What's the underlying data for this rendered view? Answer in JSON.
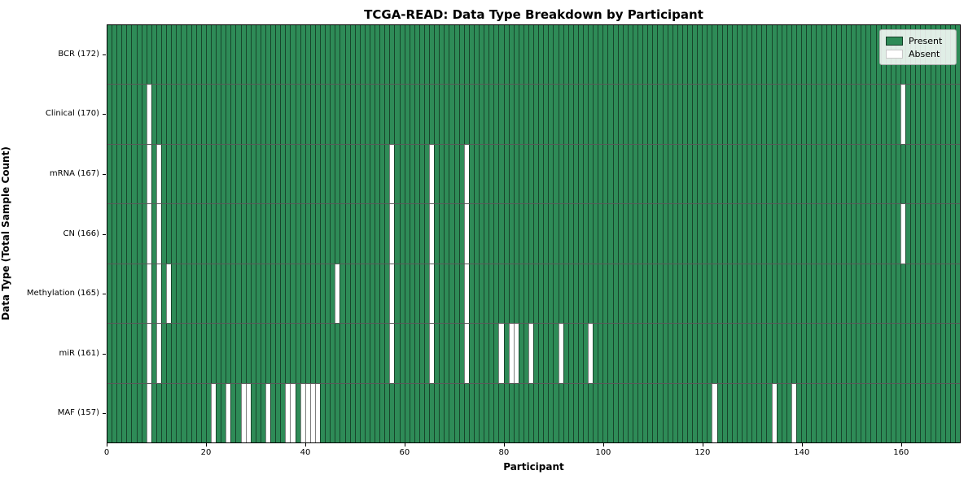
{
  "title": "TCGA-READ: Data Type Breakdown by Participant",
  "chart_data": {
    "type": "heatmap",
    "title": "TCGA-READ: Data Type Breakdown by Participant",
    "xlabel": "Participant",
    "ylabel": "Data Type (Total Sample Count)",
    "legend_position": "upper right",
    "legend": {
      "present": "Present",
      "absent": "Absent"
    },
    "colors": {
      "present": "#2e8b57",
      "absent": "#ffffff",
      "cell_edge": "rgba(0,0,0,0.5)"
    },
    "n_participants": 172,
    "xlim": [
      0,
      172
    ],
    "x_ticks": [
      0,
      20,
      40,
      60,
      80,
      100,
      120,
      140,
      160
    ],
    "rows": [
      {
        "label": "BCR (172)",
        "data_type": "BCR",
        "present_count": 172,
        "absent_participants": []
      },
      {
        "label": "Clinical (170)",
        "data_type": "Clinical",
        "present_count": 170,
        "absent_participants": [
          8,
          160
        ]
      },
      {
        "label": "mRNA (167)",
        "data_type": "mRNA",
        "present_count": 167,
        "absent_participants": [
          8,
          10,
          57,
          65,
          72
        ]
      },
      {
        "label": "CN (166)",
        "data_type": "CN",
        "present_count": 166,
        "absent_participants": [
          8,
          10,
          57,
          65,
          72,
          160
        ]
      },
      {
        "label": "Methylation (165)",
        "data_type": "Methylation",
        "present_count": 165,
        "absent_participants": [
          8,
          10,
          12,
          46,
          57,
          65,
          72
        ]
      },
      {
        "label": "miR (161)",
        "data_type": "miR",
        "present_count": 161,
        "absent_participants": [
          8,
          10,
          57,
          65,
          72,
          79,
          81,
          82,
          85,
          91,
          97
        ]
      },
      {
        "label": "MAF (157)",
        "data_type": "MAF",
        "present_count": 157,
        "absent_participants": [
          8,
          21,
          24,
          27,
          28,
          32,
          36,
          37,
          39,
          40,
          41,
          42,
          122,
          134,
          138
        ]
      }
    ]
  }
}
